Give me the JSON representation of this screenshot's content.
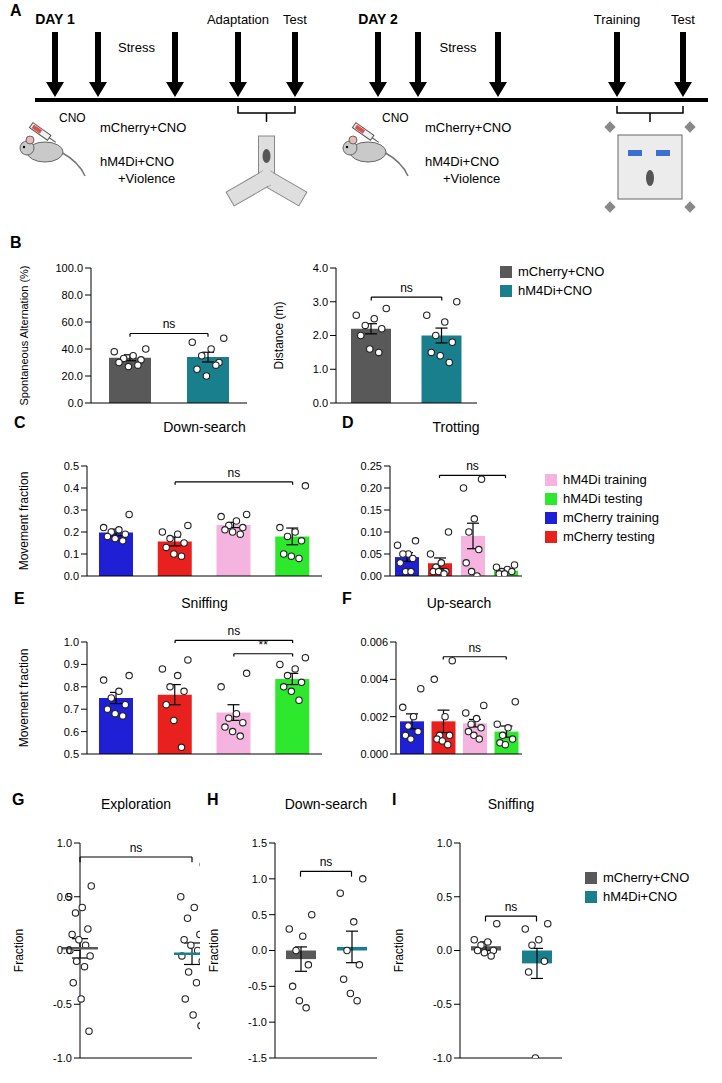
{
  "panel_a": {
    "label": "A",
    "days": [
      {
        "day": "DAY 1",
        "injection": "CNO",
        "stress": "Stress",
        "groups": [
          "mCherry+CNO",
          "hM4Di+CNO +Violence"
        ],
        "phases": [
          "Adaptation",
          "Test"
        ]
      },
      {
        "day": "DAY 2",
        "injection": "CNO",
        "stress": "Stress",
        "groups": [
          "mCherry+CNO",
          "hM4Di+CNO +Violence"
        ],
        "phases": [
          "Training",
          "Test"
        ]
      }
    ]
  },
  "legends": [
    {
      "items": [
        {
          "name": "mCherry+CNO",
          "color": "#595959"
        },
        {
          "name": "hM4Di+CNO",
          "color": "#1a7f8c"
        }
      ]
    },
    {
      "items": [
        {
          "name": "hM4Di training",
          "color": "#f5b3e0"
        },
        {
          "name": "hM4Di testing",
          "color": "#2ee82e"
        },
        {
          "name": "mCherry training",
          "color": "#1f1fd6"
        },
        {
          "name": "mCherry testing",
          "color": "#e8211e"
        }
      ]
    },
    {
      "items": [
        {
          "name": "mCherry+CNO",
          "color": "#595959"
        },
        {
          "name": "hM4Di+CNO",
          "color": "#1a7f8c"
        }
      ]
    }
  ],
  "chart_data": [
    {
      "panel": "B",
      "type": "bar",
      "categories": [
        null,
        null
      ],
      "tick_labels": "y",
      "colors": [
        "#595959",
        "#1a7f8c"
      ],
      "values": [
        33.5,
        34.0
      ],
      "errors": [
        2.2,
        3.6
      ],
      "points": [
        [
          40,
          38,
          35,
          33,
          32,
          30,
          27,
          28
        ],
        [
          48,
          45,
          40,
          35,
          30,
          25,
          20,
          28
        ]
      ],
      "ylabel": "Spontaneous Alternation (%)",
      "ylim": [
        0,
        100
      ],
      "yticks": [
        {
          "value": 0,
          "label": "0.0"
        },
        {
          "value": 20,
          "label": "20.0"
        },
        {
          "value": 40,
          "label": "40.0"
        },
        {
          "value": 60,
          "label": "60.0"
        },
        {
          "value": 80,
          "label": "80.0"
        },
        {
          "value": 100,
          "label": "100.0"
        }
      ],
      "annotations": [
        {
          "from": 0,
          "to": 1,
          "text": "ns"
        }
      ]
    },
    {
      "type": "bar",
      "categories": [
        null,
        null
      ],
      "tick_labels": "y",
      "colors": [
        "#595959",
        "#1a7f8c"
      ],
      "values": [
        2.2,
        2.0
      ],
      "errors": [
        0.15,
        0.22
      ],
      "points": [
        [
          2.8,
          2.6,
          2.5,
          2.3,
          2.2,
          2.0,
          1.6,
          1.5
        ],
        [
          3.0,
          2.6,
          2.4,
          2.0,
          1.8,
          1.5,
          1.4,
          1.2
        ]
      ],
      "ylabel": "Distance (m)",
      "ylim": [
        0,
        4
      ],
      "yticks": [
        {
          "value": 0,
          "label": "0.0"
        },
        {
          "value": 1,
          "label": "1.0"
        },
        {
          "value": 2,
          "label": "2.0"
        },
        {
          "value": 3,
          "label": "3.0"
        },
        {
          "value": 4,
          "label": "4.0"
        }
      ],
      "annotations": [
        {
          "from": 0,
          "to": 1,
          "text": "ns"
        }
      ]
    },
    {
      "panel": "C",
      "type": "bar",
      "title": "Down-search",
      "categories": [
        null,
        null,
        null,
        null
      ],
      "tick_labels": "y",
      "colors": [
        "#1f1fd6",
        "#e8211e",
        "#f5b3e0",
        "#2ee82e"
      ],
      "values": [
        0.198,
        0.157,
        0.232,
        0.18
      ],
      "errors": [
        0.015,
        0.02,
        0.012,
        0.038
      ],
      "points": [
        [
          0.28,
          0.22,
          0.21,
          0.2,
          0.19,
          0.18,
          0.17,
          0.16
        ],
        [
          0.23,
          0.2,
          0.19,
          0.17,
          0.15,
          0.13,
          0.1,
          0.09
        ],
        [
          0.28,
          0.27,
          0.25,
          0.23,
          0.22,
          0.21,
          0.2,
          0.19
        ],
        [
          0.41,
          0.22,
          0.2,
          0.18,
          0.16,
          0.1,
          0.09,
          0.08
        ]
      ],
      "ylabel": "Movement fraction",
      "ylim": [
        0,
        0.5
      ],
      "yticks": [
        {
          "value": 0,
          "label": "0.0"
        },
        0.1,
        0.2,
        0.3,
        0.4,
        0.5
      ],
      "annotations": [
        {
          "from": 1,
          "to": 3,
          "text": "ns"
        }
      ]
    },
    {
      "panel": "D",
      "type": "bar",
      "title": "Trotting",
      "categories": [
        null,
        null,
        null,
        null
      ],
      "tick_labels": "y",
      "colors": [
        "#1f1fd6",
        "#e8211e",
        "#f5b3e0",
        "#2ee82e"
      ],
      "values": [
        0.043,
        0.029,
        0.091,
        0.012
      ],
      "errors": [
        0.01,
        0.012,
        0.029,
        0.004
      ],
      "points": [
        [
          0.08,
          0.07,
          0.05,
          0.05,
          0.04,
          0.03,
          0.01,
          0.01
        ],
        [
          0.1,
          0.05,
          0.03,
          0.02,
          0.01,
          0.01,
          0.01,
          0.005
        ],
        [
          0.22,
          0.2,
          0.13,
          0.1,
          0.06,
          0.03,
          0.01,
          0.0
        ],
        [
          0.025,
          0.02,
          0.015,
          0.01,
          0.01,
          0.005,
          0.005
        ]
      ],
      "ylim": [
        0,
        0.25
      ],
      "yticks": [
        {
          "value": 0,
          "label": "0.00"
        },
        0.05,
        {
          "value": 0.1,
          "label": "0.10"
        },
        0.15,
        {
          "value": 0.2,
          "label": "0.20"
        },
        0.25
      ],
      "annotations": [
        {
          "from": 1,
          "to": 3,
          "text": "ns"
        }
      ]
    },
    {
      "panel": "E",
      "type": "bar",
      "title": "Sniffing",
      "categories": [
        null,
        null,
        null,
        null
      ],
      "tick_labels": "y",
      "colors": [
        "#1f1fd6",
        "#e8211e",
        "#f5b3e0",
        "#2ee82e"
      ],
      "values": [
        0.75,
        0.765,
        0.685,
        0.835
      ],
      "errors": [
        0.025,
        0.045,
        0.035,
        0.025
      ],
      "points": [
        [
          0.85,
          0.83,
          0.78,
          0.75,
          0.72,
          0.7,
          0.68,
          0.67
        ],
        [
          0.92,
          0.88,
          0.85,
          0.8,
          0.78,
          0.72,
          0.65,
          0.53
        ],
        [
          0.86,
          0.8,
          0.68,
          0.66,
          0.64,
          0.62,
          0.6,
          0.58
        ],
        [
          0.93,
          0.9,
          0.88,
          0.85,
          0.82,
          0.8,
          0.78,
          0.74
        ]
      ],
      "ylabel": "Movement fraction",
      "ylim": [
        0.5,
        1
      ],
      "yticks": [
        0.5,
        0.6,
        0.7,
        0.8,
        0.9,
        {
          "value": 1,
          "label": "1.0"
        }
      ],
      "annotations": [
        {
          "from": 1,
          "to": 3,
          "text": "ns"
        },
        {
          "from": 2,
          "to": 3,
          "text": "**"
        }
      ]
    },
    {
      "panel": "F",
      "type": "bar",
      "title": "Up-search",
      "categories": [
        null,
        null,
        null,
        null
      ],
      "tick_labels": "y",
      "colors": [
        "#1f1fd6",
        "#e8211e",
        "#f5b3e0",
        "#2ee82e"
      ],
      "values": [
        0.00175,
        0.00175,
        0.00165,
        0.0012
      ],
      "errors": [
        0.0004,
        0.0006,
        0.0002,
        0.0003
      ],
      "points": [
        [
          0.0035,
          0.0025,
          0.002,
          0.0015,
          0.0012,
          0.001,
          0.0008
        ],
        [
          0.005,
          0.004,
          0.002,
          0.001,
          0.001,
          0.0008,
          0.0007,
          0.0005
        ],
        [
          0.0026,
          0.0022,
          0.0019,
          0.0016,
          0.0014,
          0.0012,
          0.001,
          0.0008
        ],
        [
          0.0028,
          0.0016,
          0.0014,
          0.001,
          0.0008,
          0.0006,
          0.0005
        ]
      ],
      "ylim": [
        0,
        0.006
      ],
      "yticks": [
        {
          "value": 0,
          "label": "0.000"
        },
        0.002,
        0.004,
        0.006
      ],
      "annotations": [
        {
          "from": 1,
          "to": 3,
          "text": "ns"
        }
      ]
    },
    {
      "panel": "G",
      "type": "scatter",
      "title": "Exploration",
      "categories": [
        null,
        null
      ],
      "tick_labels": "y",
      "colors": [
        "#595959",
        "#1a7f8c"
      ],
      "values": [
        0.02,
        -0.03
      ],
      "errors": [
        0.09,
        0.1
      ],
      "points": [
        [
          0.6,
          0.5,
          0.4,
          0.35,
          0.2,
          0.15,
          0.1,
          0.05,
          0.0,
          -0.05,
          -0.1,
          -0.15,
          -0.3,
          -0.45,
          -0.75
        ],
        [
          0.8,
          0.5,
          0.4,
          0.3,
          0.15,
          0.1,
          0.05,
          0.0,
          -0.05,
          -0.1,
          -0.2,
          -0.3,
          -0.45,
          -0.6,
          -0.7
        ]
      ],
      "ylabel": "Fraction",
      "ylim": [
        -1,
        1
      ],
      "yticks": [
        {
          "value": -1,
          "label": "-1.0"
        },
        -0.5,
        {
          "value": 0,
          "label": "0.0"
        },
        0.5,
        {
          "value": 1,
          "label": "1.0"
        }
      ],
      "annotations": [
        {
          "from": 0,
          "to": 1,
          "text": "ns"
        }
      ]
    },
    {
      "panel": "H",
      "type": "bar",
      "title": "Down-search",
      "categories": [
        null,
        null
      ],
      "tick_labels": "y",
      "colors": [
        "#595959",
        "#1a7f8c"
      ],
      "values": [
        -0.12,
        0.05
      ],
      "errors": [
        0.17,
        0.22
      ],
      "points": [
        [
          0.5,
          0.3,
          0.2,
          0.0,
          -0.2,
          -0.5,
          -0.7,
          -0.8
        ],
        [
          1.0,
          0.8,
          0.4,
          0.0,
          -0.2,
          -0.4,
          -0.6,
          -0.7
        ]
      ],
      "ylabel": "Fraction",
      "ylim": [
        -1.5,
        1.5
      ],
      "yticks": [
        -1.5,
        {
          "value": -1,
          "label": "-1.0"
        },
        -0.5,
        {
          "value": 0,
          "label": "0.0"
        },
        0.5,
        {
          "value": 1,
          "label": "1.0"
        },
        1.5
      ],
      "annotations": [
        {
          "from": 0,
          "to": 1,
          "text": "ns"
        }
      ]
    },
    {
      "panel": "I",
      "type": "bar",
      "title": "Sniffing",
      "categories": [
        null,
        null
      ],
      "tick_labels": "y",
      "colors": [
        "#595959",
        "#1a7f8c"
      ],
      "values": [
        0.04,
        -0.12
      ],
      "errors": [
        0.04,
        0.14
      ],
      "points": [
        [
          0.25,
          0.1,
          0.08,
          0.05,
          0.0,
          0.0,
          -0.02,
          -0.05
        ],
        [
          0.25,
          0.2,
          0.1,
          0.05,
          -0.1,
          -0.2,
          -1.0
        ]
      ],
      "ylabel": "Fraction",
      "ylim": [
        -1,
        1
      ],
      "yticks": [
        {
          "value": -1,
          "label": "-1.0"
        },
        -0.5,
        {
          "value": 0,
          "label": "0.0"
        },
        0.5,
        {
          "value": 1,
          "label": "1.0"
        }
      ],
      "annotations": [
        {
          "from": 0,
          "to": 1,
          "text": "ns"
        }
      ]
    }
  ]
}
